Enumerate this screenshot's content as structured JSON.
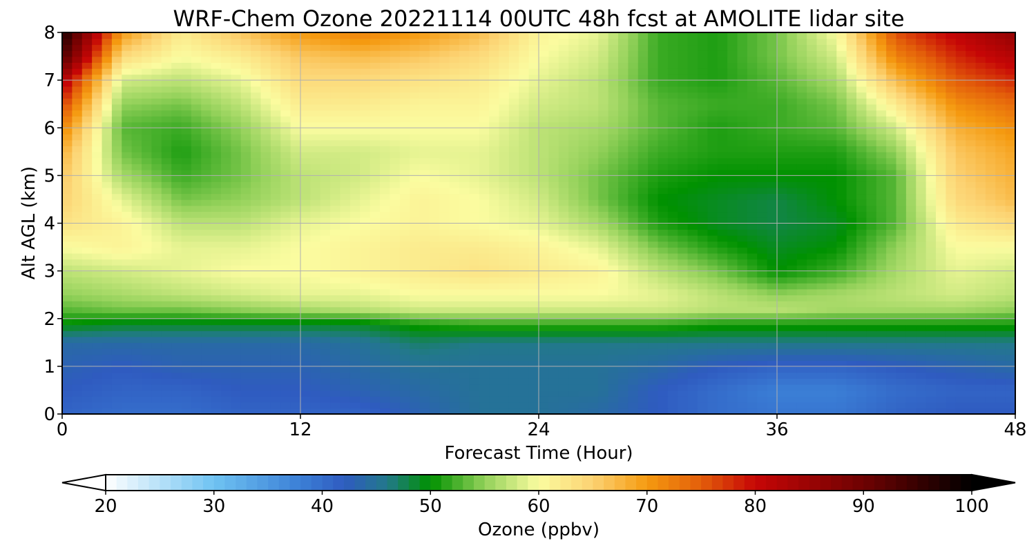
{
  "chart_data": {
    "type": "heatmap",
    "title": "WRF-Chem Ozone  20221114 00UTC 48h fcst at AMOLITE lidar site",
    "xlabel": "Forecast Time (Hour)",
    "ylabel": "Alt AGL (km)",
    "xlim": [
      0,
      48
    ],
    "ylim": [
      0,
      8
    ],
    "xticks": [
      "0",
      "12",
      "24",
      "36",
      "48"
    ],
    "yticks": [
      "0",
      "1",
      "2",
      "3",
      "4",
      "5",
      "6",
      "7",
      "8"
    ],
    "grid": true,
    "x": [
      0,
      3,
      6,
      9,
      12,
      15,
      18,
      21,
      24,
      27,
      30,
      33,
      36,
      39,
      42,
      45,
      48
    ],
    "y": [
      0,
      0.5,
      1.0,
      1.5,
      1.9,
      2.2,
      2.5,
      3.0,
      3.5,
      4.0,
      4.5,
      5.0,
      5.5,
      6.0,
      6.5,
      7.0,
      7.5,
      8.0
    ],
    "z": [
      [
        41,
        40,
        40,
        41,
        41,
        41,
        43,
        45,
        45,
        44,
        42,
        40,
        39,
        39,
        41,
        42,
        42
      ],
      [
        42,
        41,
        41,
        42,
        42,
        43,
        44,
        45,
        45,
        45,
        42,
        40,
        38,
        38,
        40,
        41,
        41
      ],
      [
        43,
        42,
        43,
        43,
        43,
        44,
        45,
        45,
        45,
        45,
        44,
        42,
        41,
        41,
        42,
        43,
        44
      ],
      [
        44,
        44,
        44,
        44,
        44,
        45,
        47,
        46,
        46,
        46,
        46,
        46,
        46,
        46,
        46,
        46,
        46
      ],
      [
        50,
        49,
        49,
        49,
        49,
        49,
        51,
        52,
        52,
        52,
        52,
        51,
        51,
        51,
        51,
        51,
        51
      ],
      [
        53,
        54,
        54,
        55,
        56,
        57,
        58,
        58,
        58,
        58,
        58,
        57,
        57,
        56,
        56,
        56,
        55
      ],
      [
        55,
        56,
        57,
        58,
        59,
        59,
        60,
        60,
        60,
        60,
        59,
        57,
        55,
        56,
        57,
        58,
        57
      ],
      [
        57,
        58,
        59,
        60,
        60,
        61,
        62,
        63,
        62,
        61,
        57,
        54,
        50,
        52,
        56,
        59,
        58
      ],
      [
        60,
        61,
        59,
        59,
        60,
        61,
        62,
        62,
        61,
        59,
        54,
        51,
        49,
        50,
        55,
        60,
        60
      ],
      [
        63,
        61,
        57,
        57,
        59,
        60,
        61,
        60,
        59,
        56,
        51,
        49,
        48,
        49,
        53,
        62,
        64
      ],
      [
        65,
        59,
        54,
        55,
        57,
        59,
        61,
        60,
        58,
        54,
        50,
        49,
        48,
        50,
        53,
        64,
        67
      ],
      [
        66,
        56,
        52,
        54,
        57,
        58,
        60,
        59,
        57,
        54,
        51,
        50,
        50,
        50,
        53,
        65,
        68
      ],
      [
        68,
        54,
        51,
        54,
        58,
        58,
        59,
        59,
        57,
        55,
        52,
        51,
        51,
        51,
        55,
        66,
        69
      ],
      [
        72,
        53,
        52,
        55,
        60,
        60,
        60,
        60,
        57,
        56,
        53,
        51,
        52,
        53,
        58,
        68,
        71
      ],
      [
        77,
        55,
        54,
        57,
        62,
        62,
        61,
        61,
        58,
        57,
        53,
        52,
        52,
        54,
        62,
        71,
        74
      ],
      [
        83,
        58,
        57,
        59,
        64,
        64,
        63,
        62,
        59,
        57,
        52,
        51,
        53,
        56,
        67,
        75,
        78
      ],
      [
        93,
        64,
        60,
        62,
        66,
        67,
        66,
        64,
        60,
        58,
        52,
        51,
        54,
        58,
        72,
        78,
        82
      ],
      [
        98,
        70,
        62,
        66,
        70,
        72,
        70,
        67,
        61,
        59,
        52,
        51,
        54,
        60,
        76,
        81,
        86
      ]
    ],
    "colorbar": {
      "label": "Ozone  (ppbv)",
      "min": 20,
      "max": 100,
      "ticks": [
        "20",
        "30",
        "40",
        "50",
        "60",
        "70",
        "80",
        "90",
        "100"
      ],
      "extend": "both",
      "stops": [
        {
          "v": 20,
          "c": "#ffffff"
        },
        {
          "v": 30,
          "c": "#6fc3f2"
        },
        {
          "v": 38,
          "c": "#3b7fd6"
        },
        {
          "v": 42,
          "c": "#2f5bc0"
        },
        {
          "v": 46,
          "c": "#22798a"
        },
        {
          "v": 50,
          "c": "#009100"
        },
        {
          "v": 55,
          "c": "#93d15a"
        },
        {
          "v": 60,
          "c": "#fbfca0"
        },
        {
          "v": 65,
          "c": "#fcd272"
        },
        {
          "v": 70,
          "c": "#f59a10"
        },
        {
          "v": 75,
          "c": "#e35e0a"
        },
        {
          "v": 80,
          "c": "#c60606"
        },
        {
          "v": 90,
          "c": "#6e0202"
        },
        {
          "v": 100,
          "c": "#000000"
        }
      ]
    }
  }
}
